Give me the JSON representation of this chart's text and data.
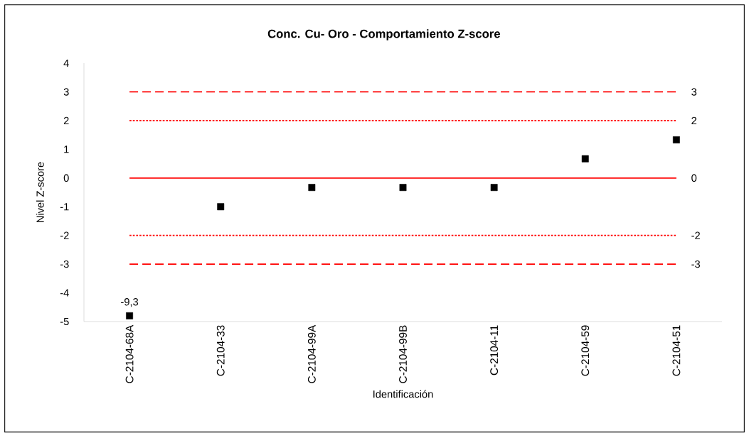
{
  "chart_data": {
    "type": "scatter",
    "title": "Conc. Cu- Oro - Comportamiento Z-score",
    "xlabel": "Identificación",
    "ylabel": "Nivel Z-score",
    "categories": [
      "C-2104-68A",
      "C-2104-33",
      "C-2104-99A",
      "C-2104-99B",
      "C-2104-11",
      "C-2104-59",
      "C-2104-51"
    ],
    "values": [
      -4.8,
      -1,
      -0.33,
      -0.33,
      -0.33,
      0.67,
      1.33
    ],
    "color": "#000000",
    "marker": "square",
    "ylim": [
      -5,
      4
    ],
    "yticks": [
      -5,
      -4,
      -3,
      -2,
      -1,
      0,
      1,
      2,
      3,
      4
    ],
    "annotations": [
      {
        "text": "-9,3",
        "x": "C-2104-68A",
        "y": -4.8
      }
    ],
    "ref_lines": [
      {
        "axis": "y",
        "value": 3,
        "label": "3",
        "color": "#ff0000",
        "line_style": "dashed"
      },
      {
        "axis": "y",
        "value": 2,
        "label": "2",
        "color": "#ff0000",
        "line_style": "dotted"
      },
      {
        "axis": "y",
        "value": 0,
        "label": "0",
        "color": "#ff0000",
        "line_style": "solid"
      },
      {
        "axis": "y",
        "value": -2,
        "label": "-2",
        "color": "#ff0000",
        "line_style": "dotted"
      },
      {
        "axis": "y",
        "value": -3,
        "label": "-3",
        "color": "#ff0000",
        "line_style": "dashed"
      }
    ]
  }
}
